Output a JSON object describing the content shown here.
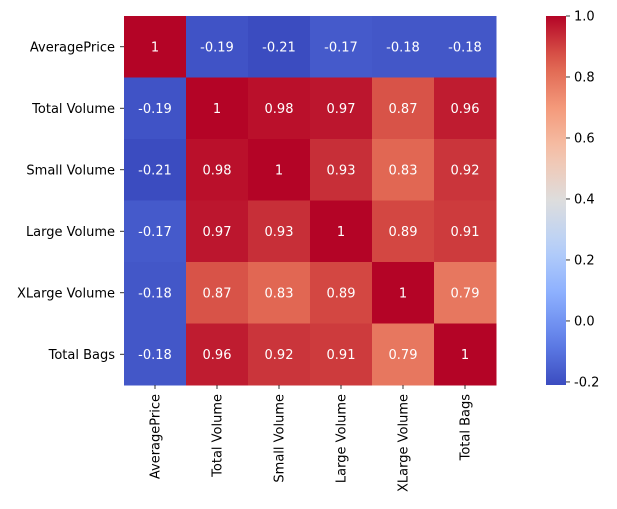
{
  "chart_data": {
    "type": "heatmap",
    "title": "",
    "xlabel": "",
    "ylabel": "",
    "x_categories": [
      "AveragePrice",
      "Total Volume",
      "Small Volume",
      "Large Volume",
      "XLarge Volume",
      "Total Bags"
    ],
    "y_categories": [
      "AveragePrice",
      "Total Volume",
      "Small Volume",
      "Large Volume",
      "XLarge Volume",
      "Total Bags"
    ],
    "values": [
      [
        1,
        -0.19,
        -0.21,
        -0.17,
        -0.18,
        -0.18
      ],
      [
        -0.19,
        1,
        0.98,
        0.97,
        0.87,
        0.96
      ],
      [
        -0.21,
        0.98,
        1,
        0.93,
        0.83,
        0.92
      ],
      [
        -0.17,
        0.97,
        0.93,
        1,
        0.89,
        0.91
      ],
      [
        -0.18,
        0.87,
        0.83,
        0.89,
        1,
        0.79
      ],
      [
        -0.18,
        0.96,
        0.92,
        0.91,
        0.79,
        1
      ]
    ],
    "annotations": [
      [
        "1",
        "-0.19",
        "-0.21",
        "-0.17",
        "-0.18",
        "-0.18"
      ],
      [
        "-0.19",
        "1",
        "0.98",
        "0.97",
        "0.87",
        "0.96"
      ],
      [
        "-0.21",
        "0.98",
        "1",
        "0.93",
        "0.83",
        "0.92"
      ],
      [
        "-0.17",
        "0.97",
        "0.93",
        "1",
        "0.89",
        "0.91"
      ],
      [
        "-0.18",
        "0.87",
        "0.83",
        "0.89",
        "1",
        "0.79"
      ],
      [
        "-0.18",
        "0.96",
        "0.92",
        "0.91",
        "0.79",
        "1"
      ]
    ],
    "colormap": "coolwarm",
    "color_range": [
      -0.21,
      1
    ],
    "colorbar_ticks": [
      "-0.2",
      "0.0",
      "0.2",
      "0.4",
      "0.6",
      "0.8",
      "1.0"
    ],
    "colorbar_tick_values": [
      -0.2,
      0.0,
      0.2,
      0.4,
      0.6,
      0.8,
      1.0
    ],
    "grid": false,
    "legend": "colorbar-right"
  }
}
